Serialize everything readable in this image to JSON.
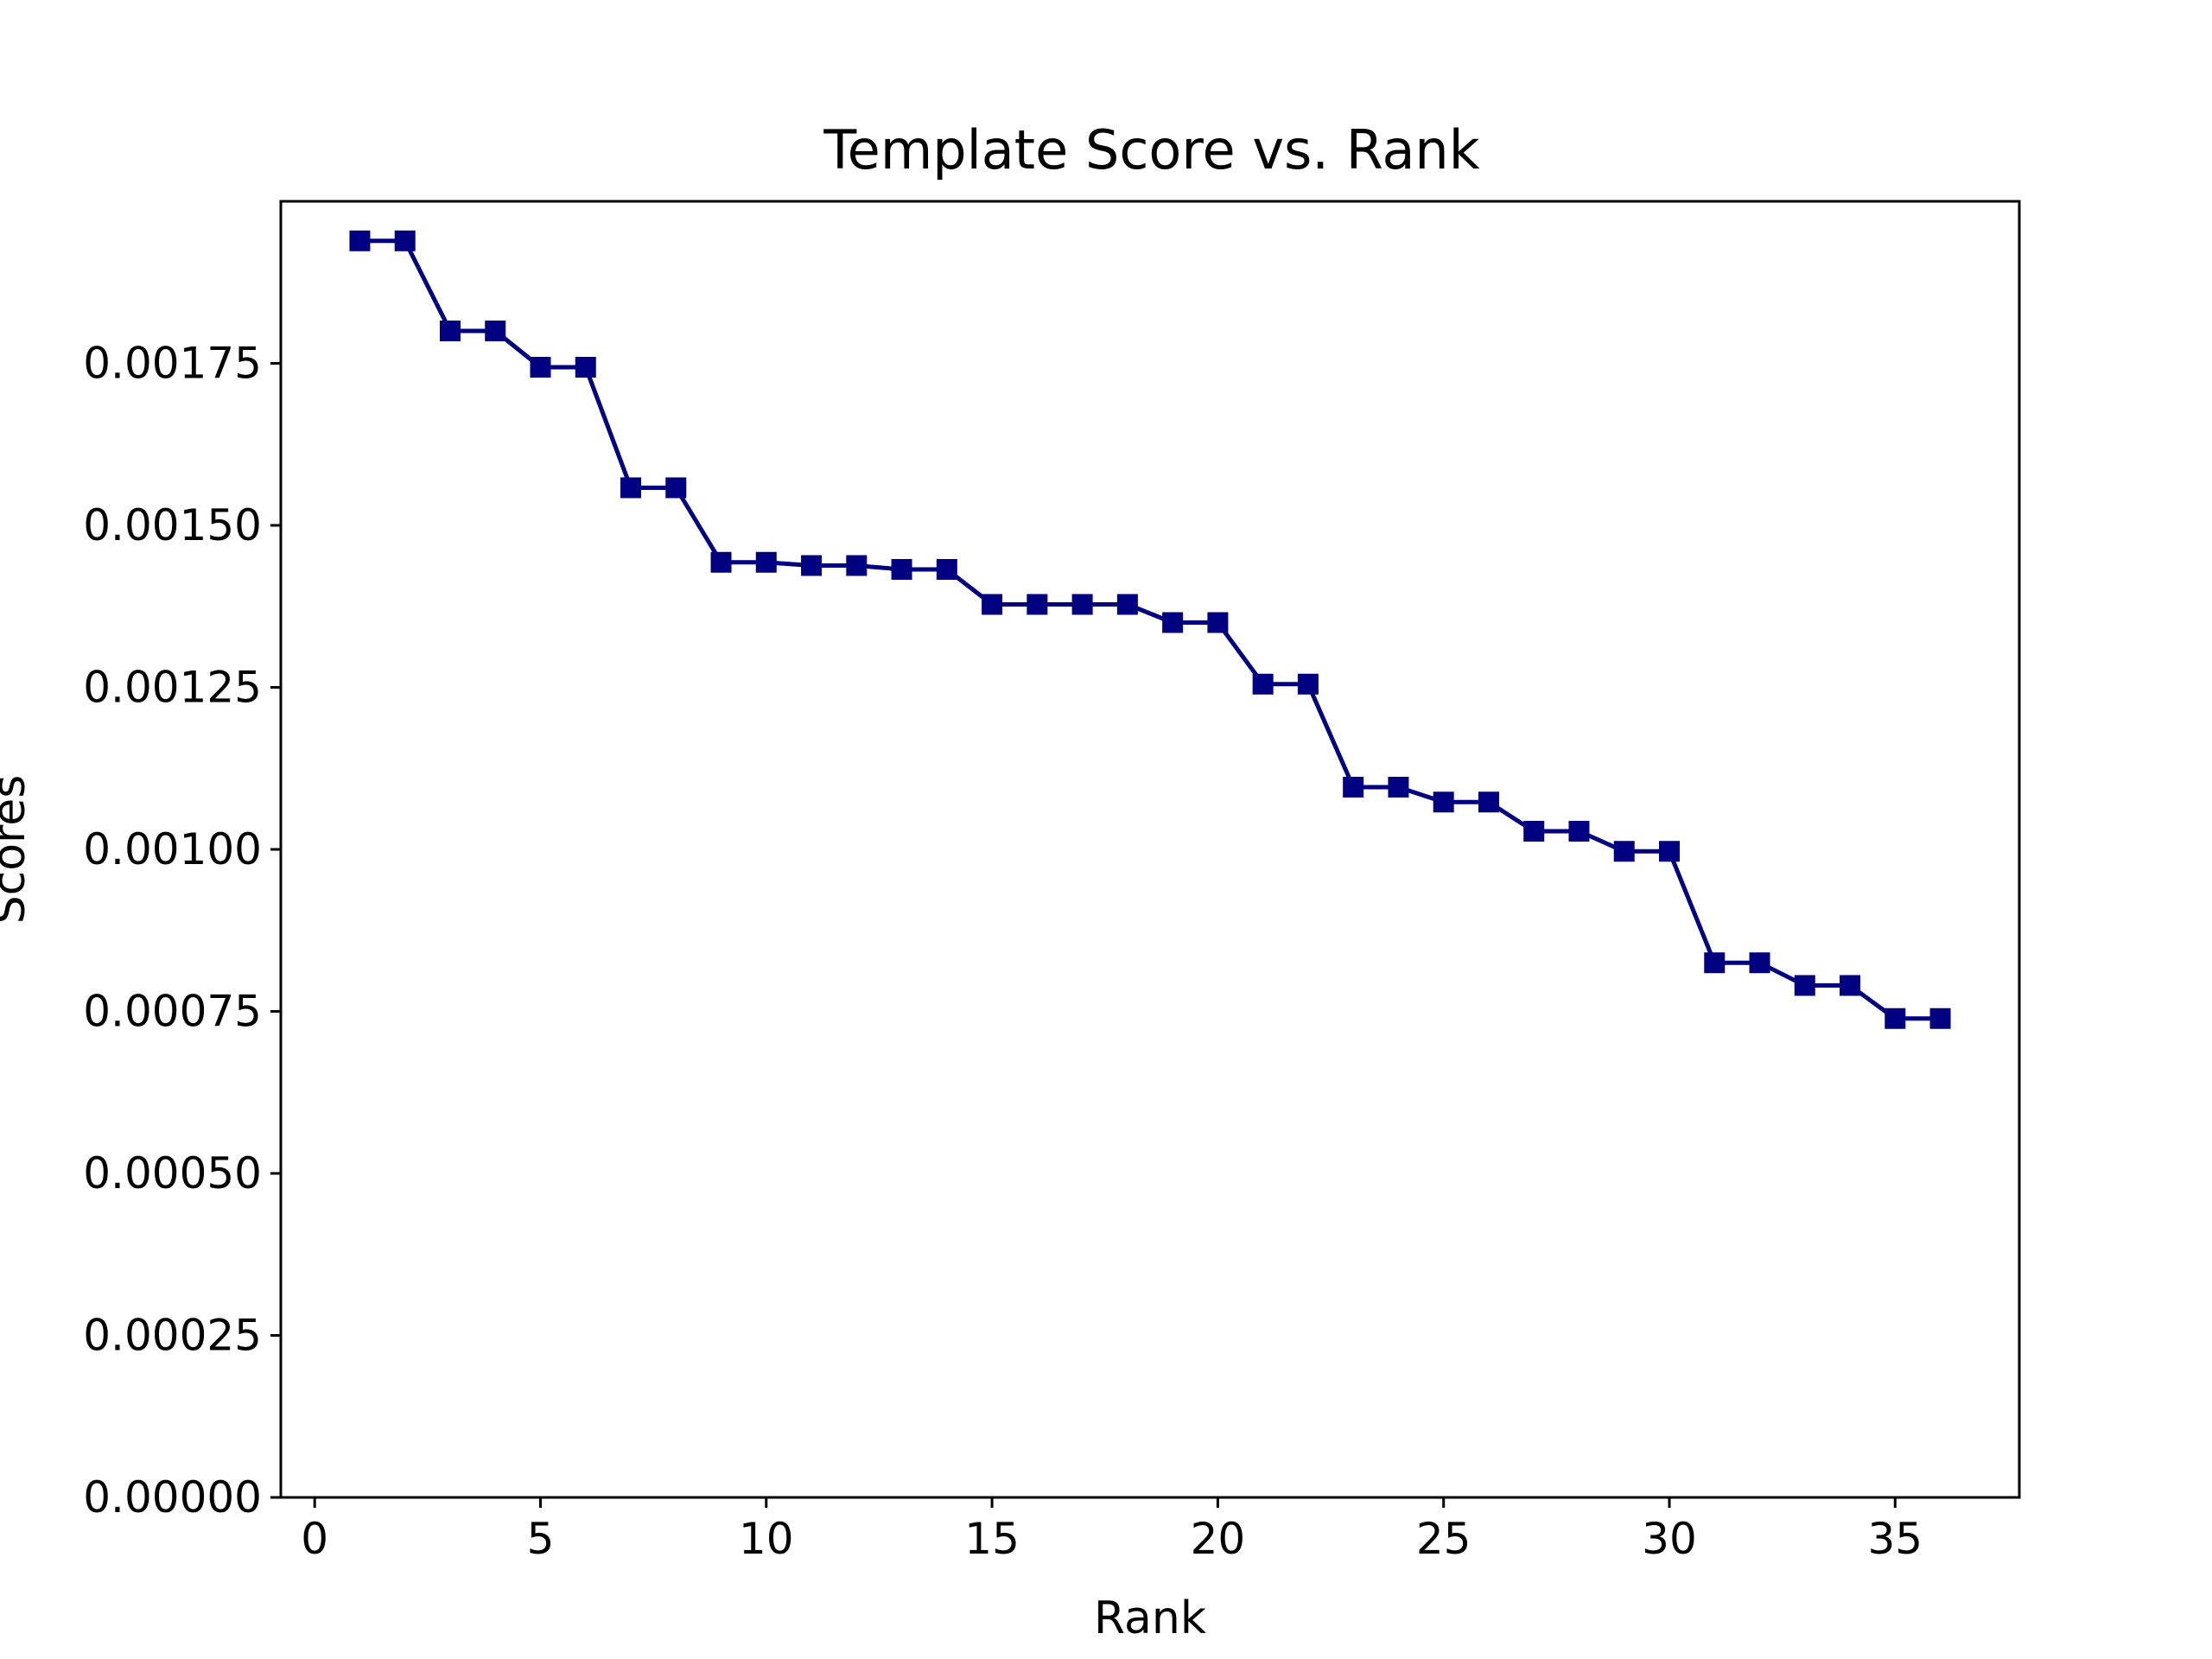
{
  "chart_data": {
    "type": "line",
    "title": "Template Score vs. Rank",
    "xlabel": "Rank",
    "ylabel": "Scores",
    "xlim": [
      -0.75,
      37.75
    ],
    "ylim": [
      0,
      0.002
    ],
    "xticks": [
      0,
      5,
      10,
      15,
      20,
      25,
      30,
      35
    ],
    "xtick_labels": [
      "0",
      "5",
      "10",
      "15",
      "20",
      "25",
      "30",
      "35"
    ],
    "yticks": [
      0,
      0.00025,
      0.0005,
      0.00075,
      0.001,
      0.00125,
      0.0015,
      0.00175
    ],
    "ytick_labels": [
      "0.00000",
      "0.00025",
      "0.00050",
      "0.00075",
      "0.00100",
      "0.00125",
      "0.00150",
      "0.00175"
    ],
    "grid": false,
    "color": "#000080",
    "marker": "square",
    "x": [
      1,
      2,
      3,
      4,
      5,
      6,
      7,
      8,
      9,
      10,
      11,
      12,
      13,
      14,
      15,
      16,
      17,
      18,
      19,
      20,
      21,
      22,
      23,
      24,
      25,
      26,
      27,
      28,
      29,
      30,
      31,
      32,
      33,
      34,
      35,
      36
    ],
    "values": [
      0.001939,
      0.001939,
      0.0018,
      0.0018,
      0.001744,
      0.001744,
      0.001558,
      0.001558,
      0.001443,
      0.001443,
      0.001438,
      0.001438,
      0.001432,
      0.001432,
      0.001378,
      0.001378,
      0.001378,
      0.001378,
      0.00135,
      0.00135,
      0.001255,
      0.001255,
      0.001096,
      0.001096,
      0.001073,
      0.001073,
      0.001028,
      0.001028,
      0.000997,
      0.000997,
      0.000825,
      0.000825,
      0.00079,
      0.00079,
      0.000739,
      0.000739
    ]
  }
}
